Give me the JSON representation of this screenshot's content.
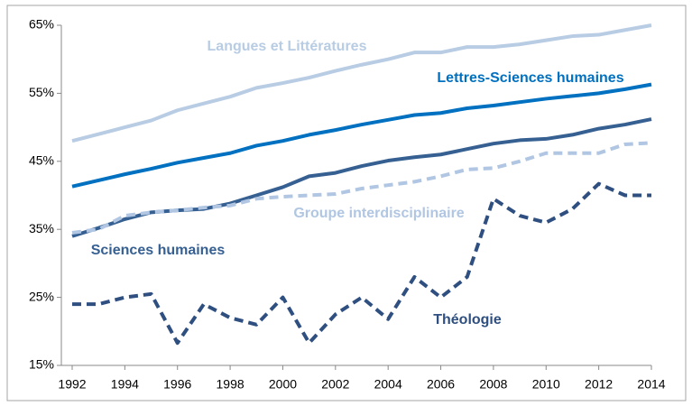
{
  "chart_data": {
    "type": "line",
    "x": [
      1992,
      1993,
      1994,
      1995,
      1996,
      1997,
      1998,
      1999,
      2000,
      2001,
      2002,
      2003,
      2004,
      2005,
      2006,
      2007,
      2008,
      2009,
      2010,
      2011,
      2012,
      2013,
      2014
    ],
    "xlim": [
      1992,
      2014
    ],
    "xticks": [
      1992,
      1994,
      1996,
      1998,
      2000,
      2002,
      2004,
      2006,
      2008,
      2010,
      2012,
      2014
    ],
    "ylim": [
      15,
      65
    ],
    "yticks": [
      {
        "value": 15,
        "label": "15%"
      },
      {
        "value": 25,
        "label": "25%"
      },
      {
        "value": 35,
        "label": "35%"
      },
      {
        "value": 45,
        "label": "45%"
      },
      {
        "value": 55,
        "label": "55%"
      },
      {
        "value": 65,
        "label": "65%"
      }
    ],
    "series": [
      {
        "name": "Langues et Littératures",
        "color": "#b8cce4",
        "dashed": false,
        "values": [
          48,
          49,
          50,
          51,
          52.5,
          53.5,
          54.5,
          55.8,
          56.5,
          57.3,
          58.3,
          59.2,
          60,
          61,
          61,
          61.8,
          61.8,
          62.2,
          62.8,
          63.4,
          63.6,
          64.3,
          65
        ]
      },
      {
        "name": "Lettres-Sciences humaines",
        "color": "#0070c0",
        "dashed": false,
        "values": [
          41.3,
          42.2,
          43.1,
          43.9,
          44.8,
          45.5,
          46.2,
          47.3,
          48,
          48.9,
          49.6,
          50.4,
          51.1,
          51.8,
          52.1,
          52.8,
          53.2,
          53.7,
          54.2,
          54.6,
          55,
          55.6,
          56.3
        ]
      },
      {
        "name": "Sciences humaines",
        "color": "#366092",
        "dashed": false,
        "values": [
          34,
          35.2,
          36.5,
          37.5,
          37.8,
          38,
          38.8,
          40,
          41.2,
          42.8,
          43.3,
          44.3,
          45.1,
          45.6,
          46,
          46.8,
          47.6,
          48.1,
          48.3,
          48.9,
          49.8,
          50.4,
          51.2
        ]
      },
      {
        "name": "Groupe interdisciplinaire",
        "color": "#b0c6e2",
        "dashed": true,
        "values": [
          34.5,
          35,
          37,
          37.5,
          37.8,
          38.2,
          38.5,
          39.5,
          39.8,
          40,
          40.2,
          41,
          41.5,
          42,
          42.8,
          43.8,
          44,
          45,
          46.2,
          46.2,
          46.2,
          47.5,
          47.7
        ]
      },
      {
        "name": "Théologie",
        "color": "#2e4f80",
        "dashed": true,
        "values": [
          24,
          24,
          25,
          25.5,
          18.3,
          24,
          22,
          21,
          25,
          18.3,
          22.5,
          25,
          21.8,
          28,
          25,
          28,
          39.5,
          37,
          36,
          38,
          41.7,
          40,
          40
        ]
      }
    ]
  }
}
